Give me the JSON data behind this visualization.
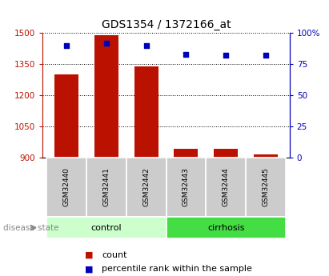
{
  "title": "GDS1354 / 1372166_at",
  "samples": [
    "GSM32440",
    "GSM32441",
    "GSM32442",
    "GSM32443",
    "GSM32444",
    "GSM32445"
  ],
  "counts": [
    1300,
    1490,
    1340,
    940,
    940,
    915
  ],
  "percentiles": [
    90,
    92,
    90,
    83,
    82,
    82
  ],
  "ylim_left": [
    900,
    1500
  ],
  "ylim_right": [
    0,
    100
  ],
  "yticks_left": [
    900,
    1050,
    1200,
    1350,
    1500
  ],
  "yticks_right": [
    0,
    25,
    50,
    75,
    100
  ],
  "ytick_labels_left": [
    "900",
    "1050",
    "1200",
    "1350",
    "1500"
  ],
  "ytick_labels_right": [
    "0",
    "25",
    "50",
    "75",
    "100%"
  ],
  "bar_color": "#bb1100",
  "dot_color": "#0000bb",
  "groups": [
    {
      "label": "control",
      "n": 3,
      "color": "#ccffcc"
    },
    {
      "label": "cirrhosis",
      "n": 3,
      "color": "#44dd44"
    }
  ],
  "group_label_prefix": "disease state",
  "background_color": "#ffffff",
  "sample_box_color": "#cccccc",
  "legend_count_label": "count",
  "legend_pct_label": "percentile rank within the sample"
}
